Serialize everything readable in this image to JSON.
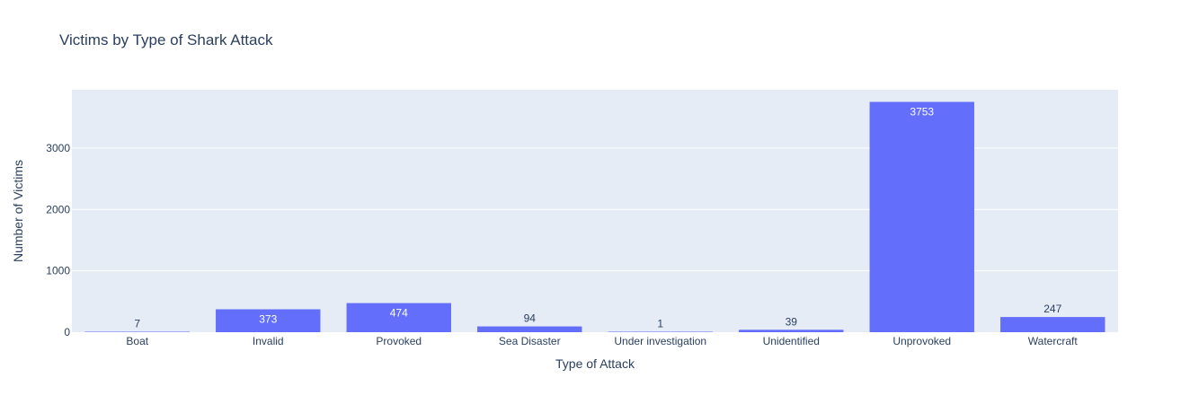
{
  "chart_data": {
    "type": "bar",
    "title": "Victims by Type of Shark Attack",
    "xlabel": "Type of Attack",
    "ylabel": "Number of Victims",
    "categories": [
      "Boat",
      "Invalid",
      "Provoked",
      "Sea Disaster",
      "Under investigation",
      "Unidentified",
      "Unprovoked",
      "Watercraft"
    ],
    "values": [
      7,
      373,
      474,
      94,
      1,
      39,
      3753,
      247
    ],
    "ylim": [
      0,
      3950.5
    ],
    "yticks": [
      0,
      1000,
      2000,
      3000
    ],
    "ytick_labels": [
      "0",
      "1000",
      "2000",
      "3000"
    ],
    "grid": true,
    "colors": {
      "bar": "#636efa",
      "plot_bg": "#e5ecf6",
      "grid": "#ffffff",
      "text": "#2a3f5f"
    }
  }
}
